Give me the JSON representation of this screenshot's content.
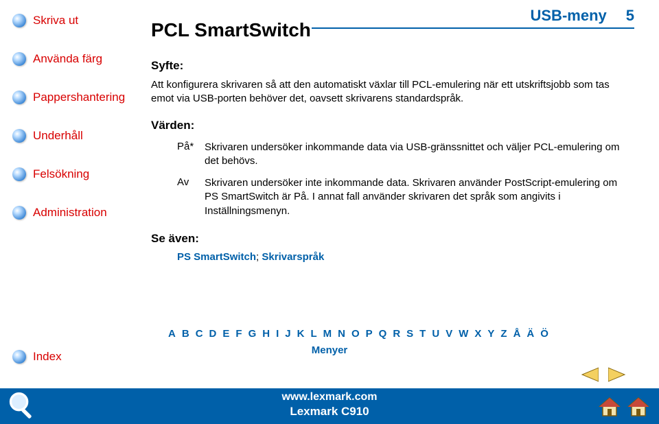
{
  "header": {
    "title": "USB-meny",
    "page_no": "5"
  },
  "sidebar": {
    "items": [
      {
        "label": "Skriva ut"
      },
      {
        "label": "Använda färg"
      },
      {
        "label": "Pappershantering"
      },
      {
        "label": "Underhåll"
      },
      {
        "label": "Felsökning"
      },
      {
        "label": "Administration"
      }
    ],
    "index_label": "Index"
  },
  "main": {
    "title": "PCL SmartSwitch",
    "syfte_label": "Syfte:",
    "syfte_text": "Att konfigurera skrivaren så att den automatiskt växlar till PCL-emulering när ett utskriftsjobb som tas emot via USB-porten behöver det, oavsett skrivarens standardspråk.",
    "varden_label": "Värden:",
    "rows": [
      {
        "code": "På*",
        "desc": "Skrivaren undersöker inkommande data via USB-gränssnittet och väljer PCL-emulering om det behövs."
      },
      {
        "code": "Av",
        "desc": "Skrivaren undersöker inte inkommande data. Skrivaren använder PostScript-emulering om PS SmartSwitch är På. I annat fall använder skrivaren det språk som angivits i Inställningsmenyn."
      }
    ],
    "see_label": "Se även:",
    "see_links": [
      "PS SmartSwitch",
      "Skrivarspråk"
    ]
  },
  "letters": [
    "A",
    "B",
    "C",
    "D",
    "E",
    "F",
    "G",
    "H",
    "I",
    "J",
    "K",
    "L",
    "M",
    "N",
    "O",
    "P",
    "Q",
    "R",
    "S",
    "T",
    "U",
    "V",
    "W",
    "X",
    "Y",
    "Z",
    "Å",
    "Ä",
    "Ö"
  ],
  "menyer_label": "Menyer",
  "footer": {
    "url": "www.lexmark.com",
    "model": "Lexmark C910"
  },
  "colors": {
    "brand_blue": "#0060a9",
    "link_red": "#d80000",
    "text": "#000000",
    "bg": "#ffffff",
    "arrow_fill": "#f4d060"
  }
}
